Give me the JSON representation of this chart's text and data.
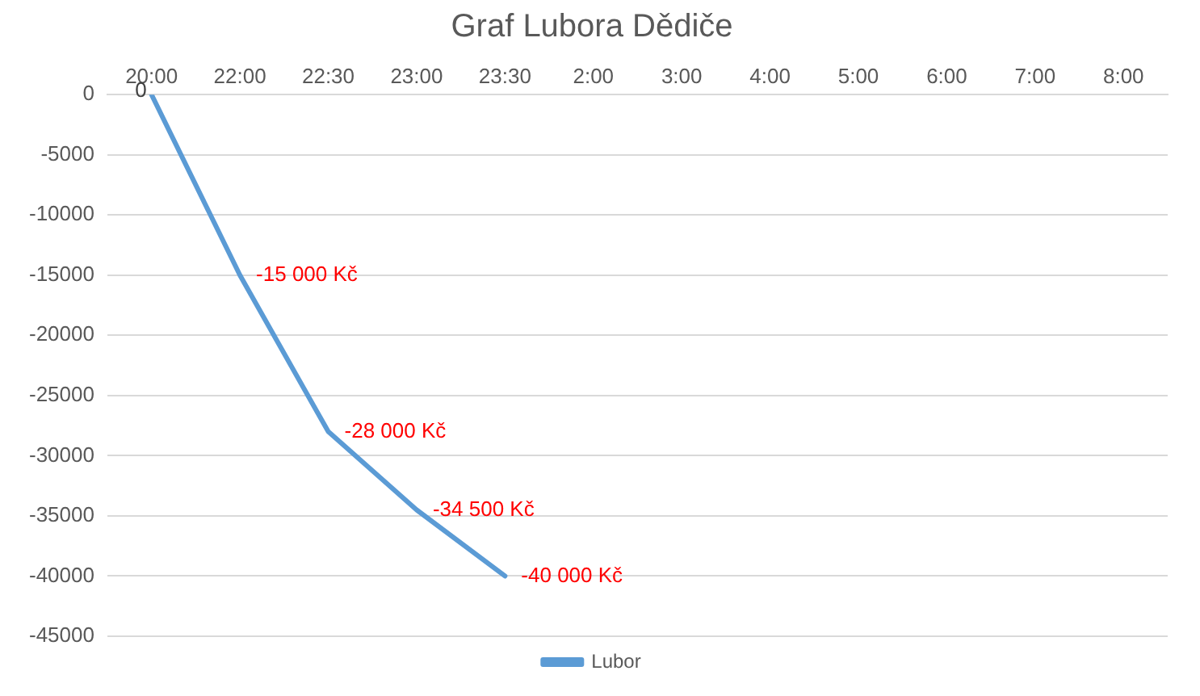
{
  "chart_data": {
    "type": "line",
    "title": "Graf Lubora Dědiče",
    "categories": [
      "20:00",
      "22:00",
      "22:30",
      "23:00",
      "23:30",
      "2:00",
      "3:00",
      "4:00",
      "5:00",
      "6:00",
      "7:00",
      "8:00"
    ],
    "series": [
      {
        "name": "Lubor",
        "color": "#5b9bd5",
        "values": [
          0,
          -15000,
          -28000,
          -34500,
          -40000,
          null,
          null,
          null,
          null,
          null,
          null,
          null
        ],
        "value_labels": [
          "0",
          "-15 000 Kč",
          "-28 000 Kč",
          "-34 500 Kč",
          "-40 000 Kč",
          null,
          null,
          null,
          null,
          null,
          null,
          null
        ]
      }
    ],
    "ylim": [
      -45000,
      0
    ],
    "yticks": [
      0,
      -5000,
      -10000,
      -15000,
      -20000,
      -25000,
      -30000,
      -35000,
      -40000,
      -45000
    ],
    "grid": "y",
    "legend": "bottom",
    "marker": "none",
    "line_style": "solid"
  }
}
